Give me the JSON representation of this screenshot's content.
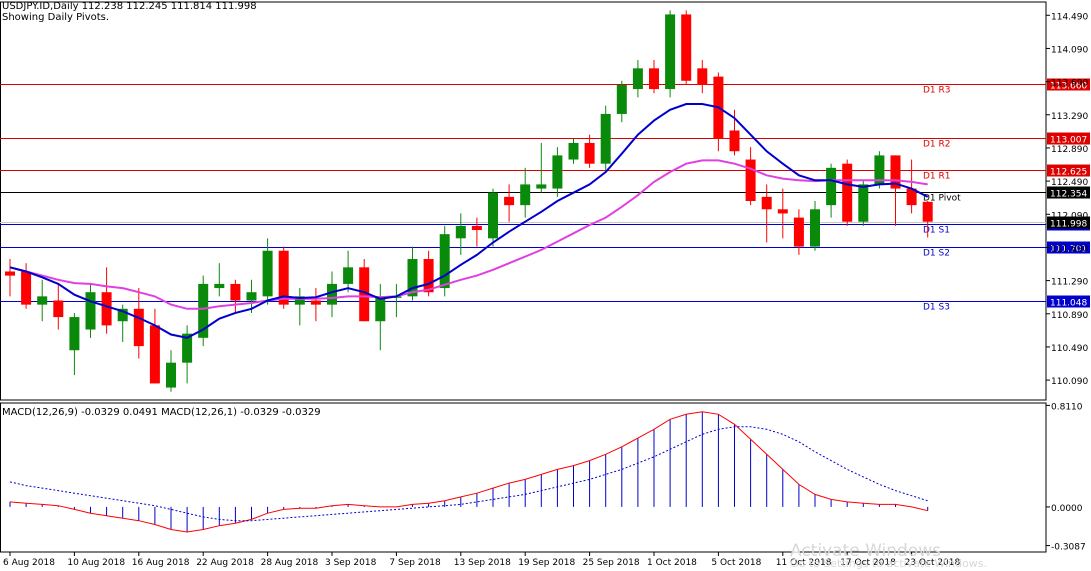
{
  "header": {
    "title": "USDJPY.ID,Daily   112.238 112.245 111.814 111.998",
    "subtitle": "Showing Daily Pivots."
  },
  "macd_label": "MACD(12,26,9) -0.0329 0.0491 MACD(12,26,1) -0.0329 -0.0329",
  "watermark": "Activate Windows",
  "watermark_sub": "Go to Settings to activate Windows.",
  "colors": {
    "bull": "#0a8a0a",
    "bear": "#ff0000",
    "ma_fast": "#0000cc",
    "ma_slow": "#e040e0",
    "resistance": "#dd0000",
    "support": "#0000cc",
    "pivot": "#000000",
    "macd_hist": "#0000cc",
    "macd_signal": "#0000cc",
    "macd_main": "#ff0000"
  },
  "chart_data": [
    {
      "type": "candlestick",
      "ylim": [
        109.85,
        114.65
      ],
      "y_ticks": [
        "114.490",
        "114.090",
        "113.690",
        "113.290",
        "112.890",
        "112.490",
        "112.090",
        "111.690",
        "111.290",
        "110.890",
        "110.490",
        "110.090"
      ],
      "x_ticks": [
        {
          "label": "6 Aug 2018",
          "index": 0
        },
        {
          "label": "10 Aug 2018",
          "index": 4
        },
        {
          "label": "16 Aug 2018",
          "index": 8
        },
        {
          "label": "22 Aug 2018",
          "index": 12
        },
        {
          "label": "28 Aug 2018",
          "index": 16
        },
        {
          "label": "3 Sep 2018",
          "index": 20
        },
        {
          "label": "7 Sep 2018",
          "index": 24
        },
        {
          "label": "13 Sep 2018",
          "index": 28
        },
        {
          "label": "19 Sep 2018",
          "index": 32
        },
        {
          "label": "25 Sep 2018",
          "index": 36
        },
        {
          "label": "1 Oct 2018",
          "index": 40
        },
        {
          "label": "5 Oct 2018",
          "index": 44
        },
        {
          "label": "11 Oct 2018",
          "index": 48
        },
        {
          "label": "17 Oct 2018",
          "index": 52
        },
        {
          "label": "23 Oct 2018",
          "index": 56
        }
      ],
      "pivots": [
        {
          "name": "D1 R3",
          "value": 113.66,
          "label": "113.660",
          "kind": "resistance"
        },
        {
          "name": "D1 R2",
          "value": 113.007,
          "label": "113.007",
          "kind": "resistance"
        },
        {
          "name": "D1 R1",
          "value": 112.625,
          "label": "112.625",
          "kind": "resistance"
        },
        {
          "name": "D1 Pivot",
          "value": 112.354,
          "label": "112.354",
          "kind": "pivot"
        },
        {
          "name": "D1 S1",
          "value": 111.972,
          "label": "111.972",
          "kind": "support"
        },
        {
          "name": "D1 S2",
          "value": 111.701,
          "label": "111.701",
          "kind": "support"
        },
        {
          "name": "D1 S3",
          "value": 111.048,
          "label": "111.048",
          "kind": "support"
        }
      ],
      "current_price": 111.998,
      "candles": [
        {
          "o": 111.4,
          "h": 111.55,
          "l": 111.1,
          "c": 111.35
        },
        {
          "o": 111.4,
          "h": 111.5,
          "l": 110.95,
          "c": 111.0
        },
        {
          "o": 111.0,
          "h": 111.3,
          "l": 110.8,
          "c": 111.1
        },
        {
          "o": 111.05,
          "h": 111.25,
          "l": 110.7,
          "c": 110.85
        },
        {
          "o": 110.45,
          "h": 110.9,
          "l": 110.15,
          "c": 110.85
        },
        {
          "o": 110.7,
          "h": 111.25,
          "l": 110.6,
          "c": 111.15
        },
        {
          "o": 111.15,
          "h": 111.45,
          "l": 110.65,
          "c": 110.75
        },
        {
          "o": 110.8,
          "h": 111.0,
          "l": 110.55,
          "c": 110.95
        },
        {
          "o": 110.95,
          "h": 111.2,
          "l": 110.35,
          "c": 110.5
        },
        {
          "o": 110.75,
          "h": 110.95,
          "l": 110.05,
          "c": 110.05
        },
        {
          "o": 110.0,
          "h": 110.45,
          "l": 109.95,
          "c": 110.3
        },
        {
          "o": 110.3,
          "h": 110.75,
          "l": 110.05,
          "c": 110.65
        },
        {
          "o": 110.6,
          "h": 111.35,
          "l": 110.5,
          "c": 111.25
        },
        {
          "o": 111.2,
          "h": 111.5,
          "l": 111.1,
          "c": 111.25
        },
        {
          "o": 111.25,
          "h": 111.3,
          "l": 110.9,
          "c": 111.05
        },
        {
          "o": 111.05,
          "h": 111.3,
          "l": 110.9,
          "c": 111.15
        },
        {
          "o": 111.1,
          "h": 111.8,
          "l": 111.0,
          "c": 111.65
        },
        {
          "o": 111.65,
          "h": 111.7,
          "l": 110.95,
          "c": 111.0
        },
        {
          "o": 111.0,
          "h": 111.2,
          "l": 110.75,
          "c": 111.1
        },
        {
          "o": 111.05,
          "h": 111.2,
          "l": 110.8,
          "c": 111.0
        },
        {
          "o": 111.0,
          "h": 111.4,
          "l": 110.85,
          "c": 111.25
        },
        {
          "o": 111.25,
          "h": 111.65,
          "l": 111.15,
          "c": 111.45
        },
        {
          "o": 111.45,
          "h": 111.55,
          "l": 110.8,
          "c": 110.8
        },
        {
          "o": 110.8,
          "h": 111.25,
          "l": 110.45,
          "c": 111.1
        },
        {
          "o": 111.1,
          "h": 111.25,
          "l": 110.85,
          "c": 111.1
        },
        {
          "o": 111.1,
          "h": 111.7,
          "l": 111.05,
          "c": 111.55
        },
        {
          "o": 111.55,
          "h": 111.65,
          "l": 111.1,
          "c": 111.15
        },
        {
          "o": 111.2,
          "h": 111.95,
          "l": 111.1,
          "c": 111.85
        },
        {
          "o": 111.8,
          "h": 112.1,
          "l": 111.6,
          "c": 111.95
        },
        {
          "o": 111.95,
          "h": 112.05,
          "l": 111.7,
          "c": 111.9
        },
        {
          "o": 111.8,
          "h": 112.4,
          "l": 111.7,
          "c": 112.35
        },
        {
          "o": 112.3,
          "h": 112.45,
          "l": 112.0,
          "c": 112.2
        },
        {
          "o": 112.2,
          "h": 112.65,
          "l": 112.05,
          "c": 112.45
        },
        {
          "o": 112.4,
          "h": 112.95,
          "l": 112.35,
          "c": 112.45
        },
        {
          "o": 112.4,
          "h": 112.9,
          "l": 112.3,
          "c": 112.8
        },
        {
          "o": 112.75,
          "h": 113.0,
          "l": 112.7,
          "c": 112.95
        },
        {
          "o": 112.95,
          "h": 113.05,
          "l": 112.65,
          "c": 112.7
        },
        {
          "o": 112.7,
          "h": 113.4,
          "l": 112.6,
          "c": 113.3
        },
        {
          "o": 113.3,
          "h": 113.7,
          "l": 113.2,
          "c": 113.65
        },
        {
          "o": 113.6,
          "h": 113.95,
          "l": 113.5,
          "c": 113.85
        },
        {
          "o": 113.85,
          "h": 113.95,
          "l": 113.55,
          "c": 113.6
        },
        {
          "o": 113.6,
          "h": 114.55,
          "l": 113.5,
          "c": 114.5
        },
        {
          "o": 114.5,
          "h": 114.55,
          "l": 113.65,
          "c": 113.7
        },
        {
          "o": 113.85,
          "h": 113.95,
          "l": 113.55,
          "c": 113.65
        },
        {
          "o": 113.75,
          "h": 113.8,
          "l": 112.85,
          "c": 113.0
        },
        {
          "o": 113.1,
          "h": 113.35,
          "l": 112.8,
          "c": 112.85
        },
        {
          "o": 112.75,
          "h": 112.9,
          "l": 112.2,
          "c": 112.25
        },
        {
          "o": 112.3,
          "h": 112.45,
          "l": 111.75,
          "c": 112.15
        },
        {
          "o": 112.15,
          "h": 112.4,
          "l": 111.8,
          "c": 112.1
        },
        {
          "o": 112.05,
          "h": 112.15,
          "l": 111.6,
          "c": 111.7
        },
        {
          "o": 111.7,
          "h": 112.25,
          "l": 111.65,
          "c": 112.15
        },
        {
          "o": 112.2,
          "h": 112.7,
          "l": 112.05,
          "c": 112.65
        },
        {
          "o": 112.7,
          "h": 112.75,
          "l": 111.95,
          "c": 112.0
        },
        {
          "o": 112.0,
          "h": 112.5,
          "l": 111.95,
          "c": 112.45
        },
        {
          "o": 112.45,
          "h": 112.85,
          "l": 112.4,
          "c": 112.8
        },
        {
          "o": 112.8,
          "h": 112.8,
          "l": 111.95,
          "c": 112.4
        },
        {
          "o": 112.4,
          "h": 112.75,
          "l": 112.1,
          "c": 112.2
        },
        {
          "o": 112.24,
          "h": 112.25,
          "l": 111.81,
          "c": 112.0
        }
      ],
      "ma_fast": [
        111.45,
        111.4,
        111.33,
        111.25,
        111.12,
        111.04,
        110.98,
        110.92,
        110.84,
        110.75,
        110.64,
        110.6,
        110.7,
        110.83,
        110.9,
        110.95,
        111.05,
        111.1,
        111.08,
        111.09,
        111.15,
        111.2,
        111.15,
        111.07,
        111.1,
        111.2,
        111.25,
        111.35,
        111.48,
        111.6,
        111.75,
        111.88,
        112.0,
        112.12,
        112.25,
        112.35,
        112.45,
        112.6,
        112.82,
        113.05,
        113.22,
        113.35,
        113.42,
        113.42,
        113.38,
        113.25,
        113.05,
        112.85,
        112.7,
        112.56,
        112.5,
        112.5,
        112.45,
        112.42,
        112.45,
        112.46,
        112.4,
        112.3
      ],
      "ma_slow": [
        111.45,
        111.4,
        111.35,
        111.3,
        111.26,
        111.25,
        111.22,
        111.2,
        111.15,
        111.1,
        111.0,
        110.95,
        110.95,
        110.98,
        111.0,
        111.02,
        111.05,
        111.07,
        111.07,
        111.07,
        111.08,
        111.1,
        111.1,
        111.09,
        111.1,
        111.15,
        111.18,
        111.24,
        111.3,
        111.35,
        111.42,
        111.5,
        111.58,
        111.66,
        111.76,
        111.86,
        111.96,
        112.05,
        112.18,
        112.32,
        112.48,
        112.6,
        112.7,
        112.74,
        112.74,
        112.7,
        112.64,
        112.56,
        112.52,
        112.5,
        112.49,
        112.5,
        112.5,
        112.5,
        112.5,
        112.5,
        112.48,
        112.45
      ]
    },
    {
      "type": "bar",
      "name": "MACD",
      "ylim": [
        -0.36,
        0.83
      ],
      "y_ticks": [
        "0.8110",
        "0.0000",
        "-0.3087"
      ],
      "histogram": [
        0.04,
        0.03,
        0.02,
        0.01,
        -0.02,
        -0.05,
        -0.07,
        -0.09,
        -0.11,
        -0.14,
        -0.18,
        -0.2,
        -0.18,
        -0.15,
        -0.13,
        -0.1,
        -0.05,
        -0.02,
        -0.01,
        -0.01,
        0.01,
        0.02,
        0.01,
        0.0,
        0.0,
        0.02,
        0.03,
        0.05,
        0.08,
        0.11,
        0.15,
        0.19,
        0.22,
        0.26,
        0.3,
        0.33,
        0.37,
        0.42,
        0.48,
        0.55,
        0.62,
        0.7,
        0.74,
        0.76,
        0.74,
        0.66,
        0.54,
        0.42,
        0.3,
        0.18,
        0.1,
        0.06,
        0.04,
        0.03,
        0.02,
        0.02,
        0.0,
        -0.03
      ],
      "signal": [
        0.2,
        0.17,
        0.15,
        0.13,
        0.11,
        0.09,
        0.07,
        0.05,
        0.03,
        0.01,
        -0.02,
        -0.05,
        -0.08,
        -0.1,
        -0.11,
        -0.11,
        -0.1,
        -0.09,
        -0.08,
        -0.07,
        -0.06,
        -0.05,
        -0.04,
        -0.03,
        -0.02,
        -0.01,
        0.0,
        0.01,
        0.02,
        0.04,
        0.06,
        0.08,
        0.1,
        0.13,
        0.16,
        0.19,
        0.22,
        0.26,
        0.3,
        0.35,
        0.4,
        0.46,
        0.52,
        0.58,
        0.62,
        0.64,
        0.64,
        0.62,
        0.58,
        0.52,
        0.44,
        0.37,
        0.3,
        0.24,
        0.18,
        0.13,
        0.09,
        0.05
      ]
    }
  ]
}
